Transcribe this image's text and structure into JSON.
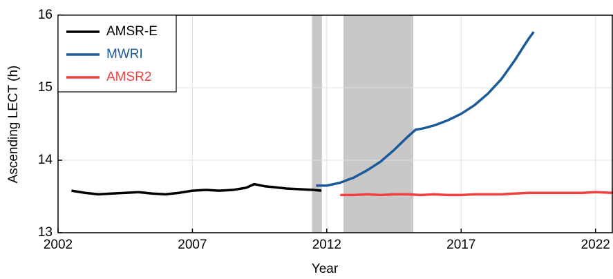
{
  "chart_data": {
    "type": "line",
    "x_label": "Year",
    "y_label": "Ascending LECT (h)",
    "xlim": [
      2002,
      2022.65
    ],
    "ylim": [
      13,
      16
    ],
    "xticks": [
      2002,
      2007,
      2012,
      2017,
      2022
    ],
    "yticks": [
      13,
      14,
      15,
      16
    ],
    "grid": true,
    "legend": "upper left",
    "shaded_spans": [
      [
        2011.45,
        2011.82
      ],
      [
        2012.62,
        2015.22
      ]
    ],
    "shade_color": "#c8c8c8",
    "series": [
      {
        "name": "AMSR-E",
        "color": "#000000",
        "x": [
          2002.5,
          2003,
          2003.5,
          2004,
          2004.5,
          2005,
          2005.5,
          2006,
          2006.5,
          2007,
          2007.5,
          2008,
          2008.5,
          2009,
          2009.3,
          2009.7,
          2010,
          2010.5,
          2011,
          2011.5,
          2011.8
        ],
        "values": [
          13.58,
          13.55,
          13.53,
          13.54,
          13.55,
          13.56,
          13.54,
          13.53,
          13.55,
          13.58,
          13.59,
          13.58,
          13.59,
          13.62,
          13.67,
          13.64,
          13.63,
          13.61,
          13.6,
          13.59,
          13.58
        ]
      },
      {
        "name": "MWRI",
        "color": "#1a5a9a",
        "x": [
          2011.6,
          2012,
          2012.5,
          2013,
          2013.5,
          2014,
          2014.5,
          2015,
          2015.3,
          2015.6,
          2016,
          2016.5,
          2017,
          2017.5,
          2018,
          2018.5,
          2019,
          2019.5,
          2019.7
        ],
        "values": [
          13.65,
          13.65,
          13.69,
          13.76,
          13.86,
          13.98,
          14.14,
          14.32,
          14.42,
          14.44,
          14.48,
          14.55,
          14.64,
          14.76,
          14.92,
          15.12,
          15.38,
          15.67,
          15.77
        ]
      },
      {
        "name": "AMSR2",
        "color": "#f04040",
        "x": [
          2012.5,
          2013,
          2013.5,
          2014,
          2014.5,
          2015,
          2015.5,
          2016,
          2016.5,
          2017,
          2017.5,
          2018,
          2018.5,
          2019,
          2019.5,
          2020,
          2020.5,
          2021,
          2021.5,
          2022,
          2022.65
        ],
        "values": [
          13.52,
          13.52,
          13.53,
          13.52,
          13.53,
          13.53,
          13.52,
          13.53,
          13.52,
          13.52,
          13.53,
          13.53,
          13.53,
          13.54,
          13.55,
          13.55,
          13.55,
          13.55,
          13.55,
          13.56,
          13.55
        ]
      }
    ]
  }
}
